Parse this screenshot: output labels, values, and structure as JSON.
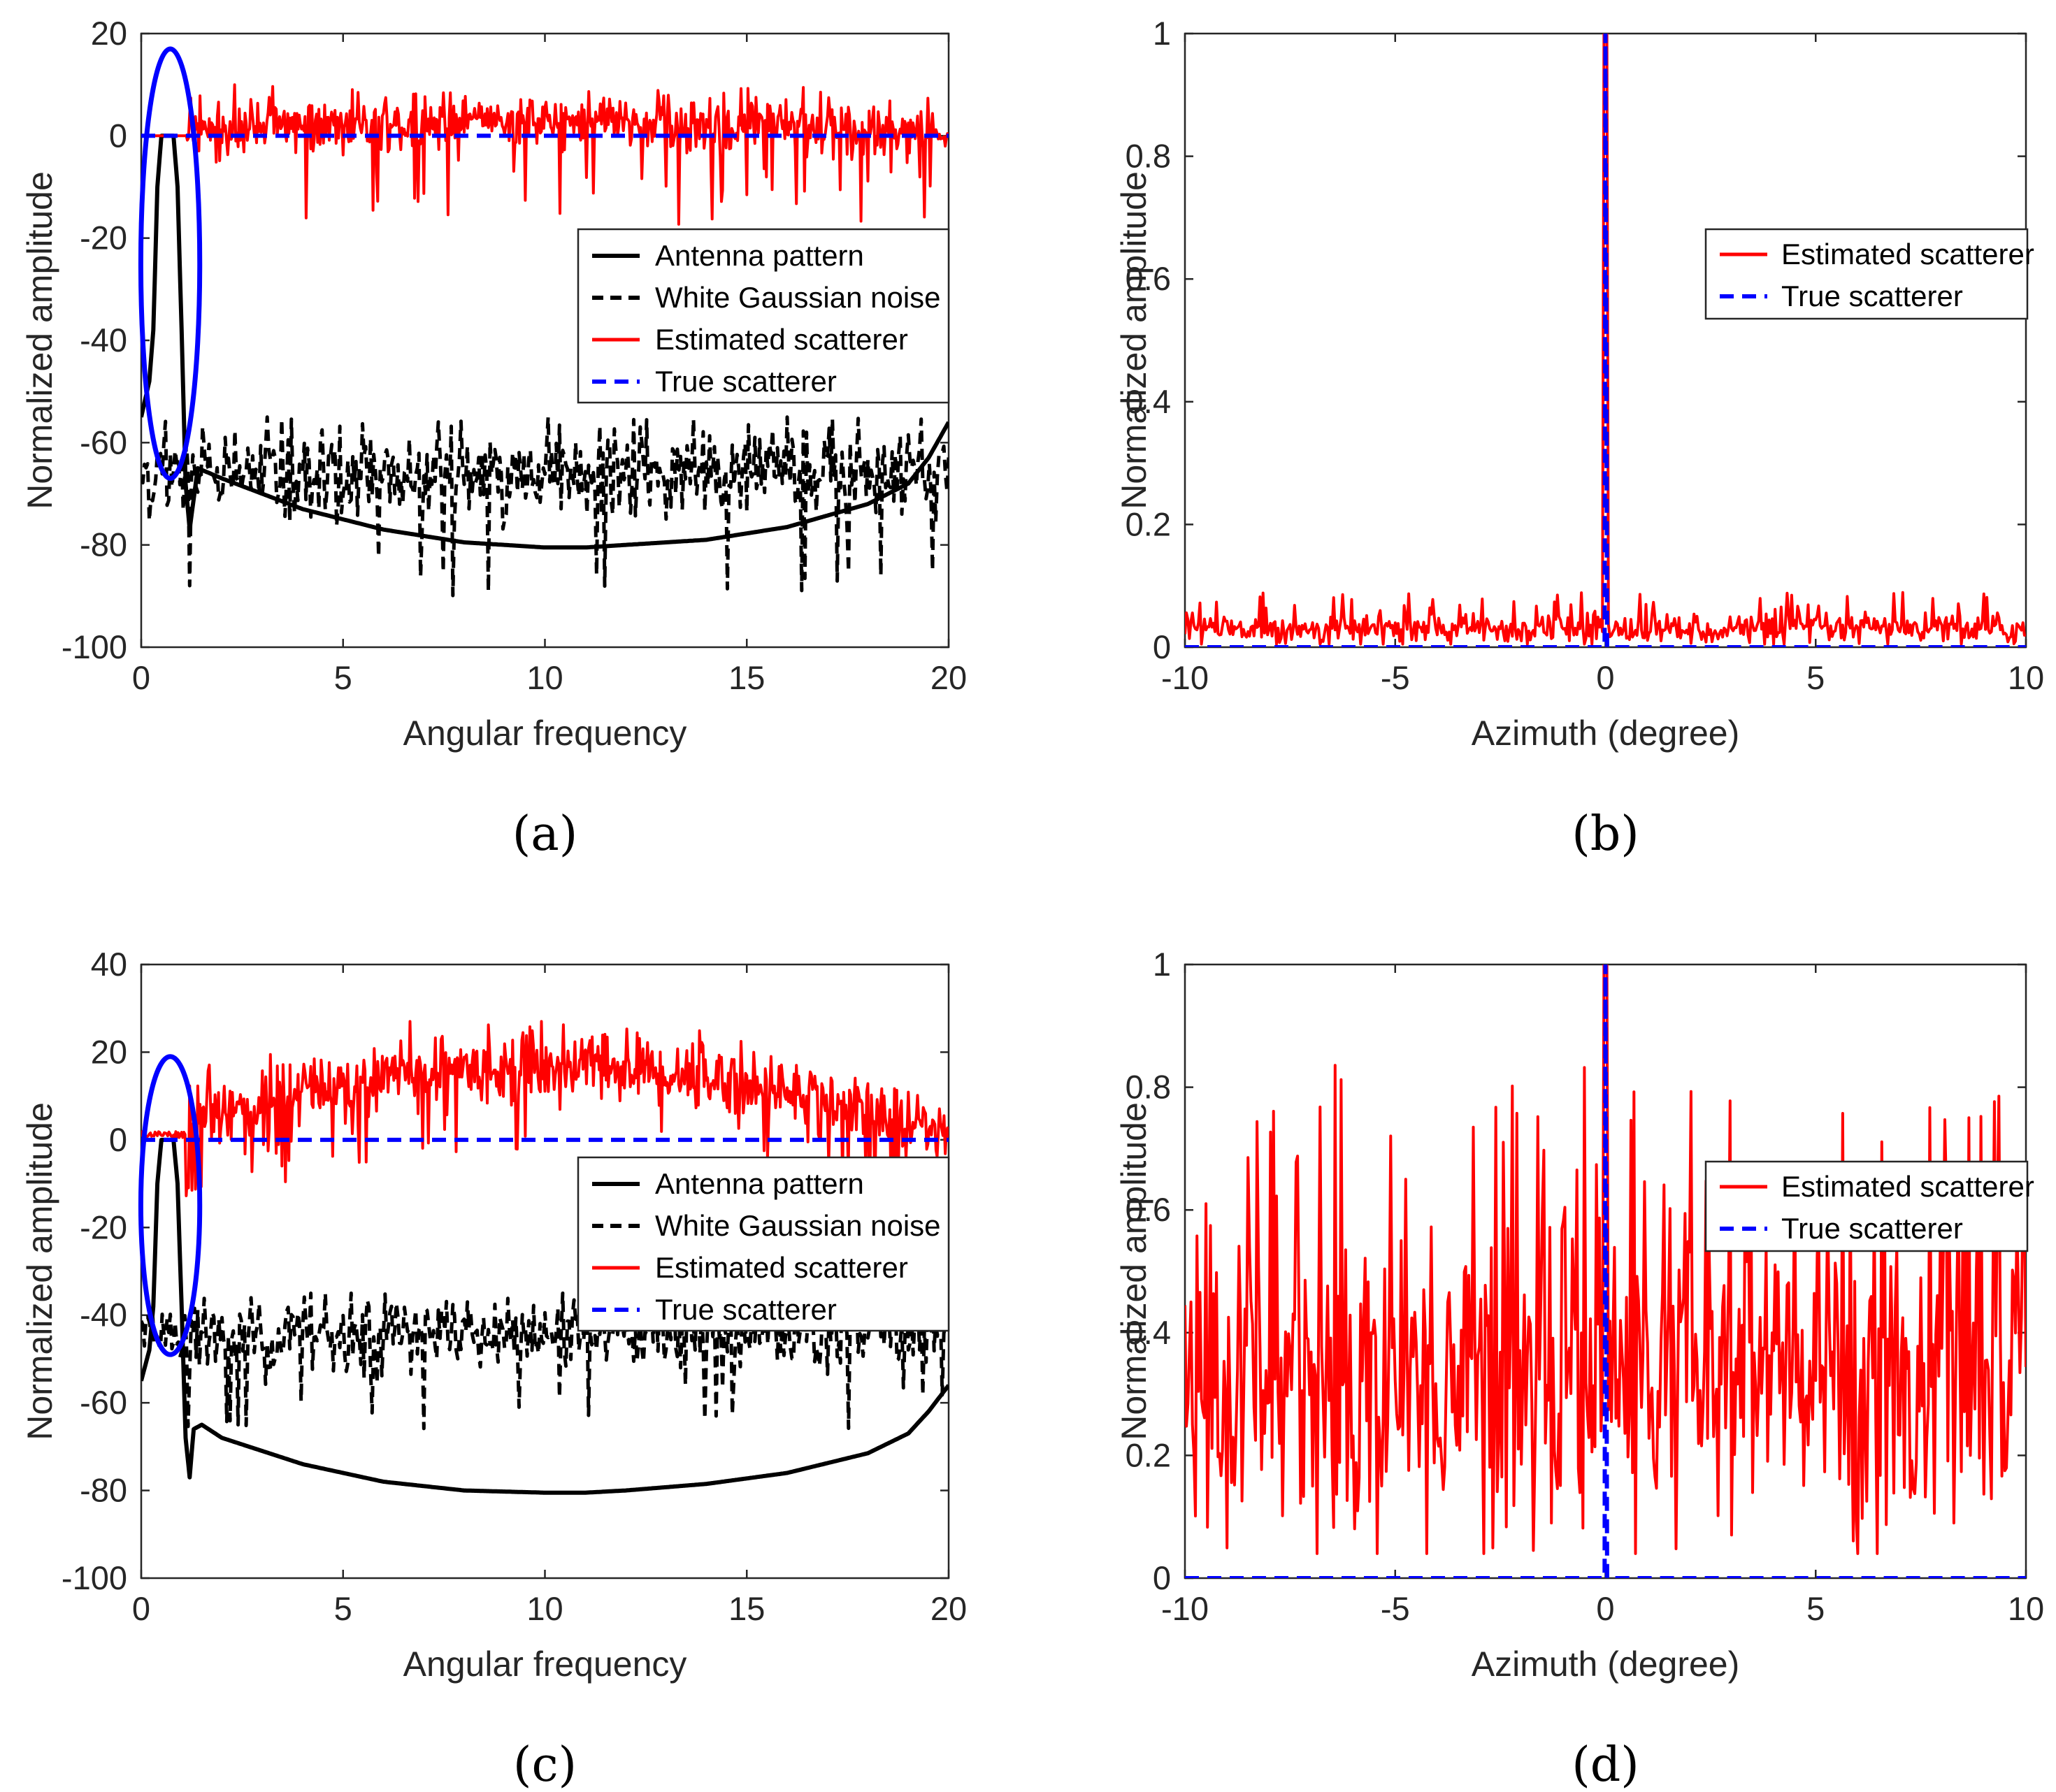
{
  "colors": {
    "estimated": "#ff0000",
    "true_line": "#0000ff",
    "antenna": "#000000",
    "noise": "#000000",
    "ellipse": "#0000ff"
  },
  "chart_data": [
    {
      "panel": "a",
      "label": "(a)",
      "type": "line",
      "xlabel": "Angular frequency",
      "ylabel": "Normalized amplitude",
      "xlim": [
        0,
        20
      ],
      "ylim": [
        -100,
        20
      ],
      "xticks": [
        "0",
        "5",
        "10",
        "15",
        "20"
      ],
      "yticks": [
        "-100",
        "-80",
        "-60",
        "-40",
        "-20",
        "0",
        "20"
      ],
      "legend": [
        "Antenna pattern",
        "White Gaussian noise",
        "Estimated scatterer",
        "True scatterer"
      ],
      "legend_position": "middle-right",
      "series": [
        {
          "name": "Antenna pattern",
          "style": "solid-black",
          "x": [
            0,
            0.2,
            0.3,
            0.4,
            0.5,
            0.6,
            0.7,
            0.8,
            0.9,
            1.0,
            1.1,
            1.2,
            1.4,
            2,
            4,
            6,
            8,
            10,
            11,
            12,
            14,
            16,
            18,
            19,
            19.5,
            20
          ],
          "y": [
            -55,
            -48,
            -38,
            -10,
            0,
            0,
            0,
            0,
            -10,
            -38,
            -68,
            -77,
            -65,
            -67,
            -73,
            -77,
            -79.5,
            -80.5,
            -80.5,
            -80,
            -79,
            -76.5,
            -72,
            -68,
            -63,
            -56
          ]
        },
        {
          "name": "White Gaussian noise",
          "style": "dashed-black",
          "amplitude_center": -66,
          "min": -90,
          "max": -55
        },
        {
          "name": "Estimated scatterer",
          "style": "solid-red",
          "mean": 0,
          "min": -18.5,
          "max": 11
        },
        {
          "name": "True scatterer",
          "style": "dashed-blue",
          "x": [
            0,
            20
          ],
          "y": [
            0,
            0
          ]
        }
      ],
      "annotation": "blue ellipse around main lobe near x=0.7"
    },
    {
      "panel": "b",
      "label": "(b)",
      "type": "line",
      "xlabel": "Azimuth (degree)",
      "ylabel": "Normalized amplitude",
      "xlim": [
        -10,
        10
      ],
      "ylim": [
        0,
        1
      ],
      "xticks": [
        "-10",
        "-5",
        "0",
        "5",
        "10"
      ],
      "yticks": [
        "0",
        "0.2",
        "0.4",
        "0.6",
        "0.8",
        "1"
      ],
      "legend": [
        "Estimated scatterer",
        "True scatterer"
      ],
      "legend_position": "upper-right",
      "series": [
        {
          "name": "Estimated scatterer",
          "style": "solid-red",
          "noise_floor_mean": 0.03,
          "noise_floor_max": 0.09,
          "peak": {
            "x": 0,
            "y": 1
          }
        },
        {
          "name": "True scatterer",
          "style": "dashed-blue",
          "baseline": 0,
          "peak": {
            "x": 0,
            "y": 1
          }
        }
      ]
    },
    {
      "panel": "c",
      "label": "(c)",
      "type": "line",
      "xlabel": "Angular frequency",
      "ylabel": "Normalized amplitude",
      "xlim": [
        0,
        20
      ],
      "ylim": [
        -100,
        40
      ],
      "xticks": [
        "0",
        "5",
        "10",
        "15",
        "20"
      ],
      "yticks": [
        "-100",
        "-80",
        "-60",
        "-40",
        "-20",
        "0",
        "20",
        "40"
      ],
      "legend": [
        "Antenna pattern",
        "White Gaussian noise",
        "Estimated scatterer",
        "True scatterer"
      ],
      "legend_position": "middle-right",
      "series": [
        {
          "name": "Antenna pattern",
          "style": "solid-black",
          "x": [
            0,
            0.2,
            0.3,
            0.4,
            0.5,
            0.6,
            0.7,
            0.8,
            0.9,
            1.0,
            1.1,
            1.2,
            1.3,
            1.5,
            2,
            4,
            6,
            8,
            10,
            11,
            12,
            14,
            16,
            18,
            19,
            19.5,
            20
          ],
          "y": [
            -55,
            -48,
            -38,
            -10,
            0,
            0,
            0,
            0,
            -10,
            -38,
            -68,
            -77,
            -66,
            -65,
            -68,
            -74,
            -78,
            -80,
            -80.5,
            -80.5,
            -80,
            -78.5,
            -76,
            -71.5,
            -67,
            -62,
            -56
          ]
        },
        {
          "name": "White Gaussian noise",
          "style": "dashed-black",
          "amplitude_center": -44,
          "min": -66,
          "max": -35
        },
        {
          "name": "Estimated scatterer",
          "style": "solid-red",
          "envelope_peak": 17,
          "min": -15,
          "max": 27
        },
        {
          "name": "True scatterer",
          "style": "dashed-blue",
          "x": [
            0,
            20
          ],
          "y": [
            0,
            0
          ]
        }
      ],
      "annotation": "blue ellipse around main lobe near x=0.7"
    },
    {
      "panel": "d",
      "label": "(d)",
      "type": "line",
      "xlabel": "Azimuth (degree)",
      "ylabel": "Normalized amplitude",
      "xlim": [
        -10,
        10
      ],
      "ylim": [
        0,
        1
      ],
      "xticks": [
        "-10",
        "-5",
        "0",
        "5",
        "10"
      ],
      "yticks": [
        "0",
        "0.2",
        "0.4",
        "0.6",
        "0.8",
        "1"
      ],
      "legend": [
        "Estimated scatterer",
        "True scatterer"
      ],
      "legend_position": "upper-right",
      "series": [
        {
          "name": "Estimated scatterer",
          "style": "solid-red",
          "noise_mean": 0.33,
          "noise_min": 0.04,
          "noise_max": 0.85,
          "peak": {
            "x": 0,
            "y": 1
          }
        },
        {
          "name": "True scatterer",
          "style": "dashed-blue",
          "baseline": 0,
          "peak": {
            "x": 0,
            "y": 1
          }
        }
      ]
    }
  ]
}
